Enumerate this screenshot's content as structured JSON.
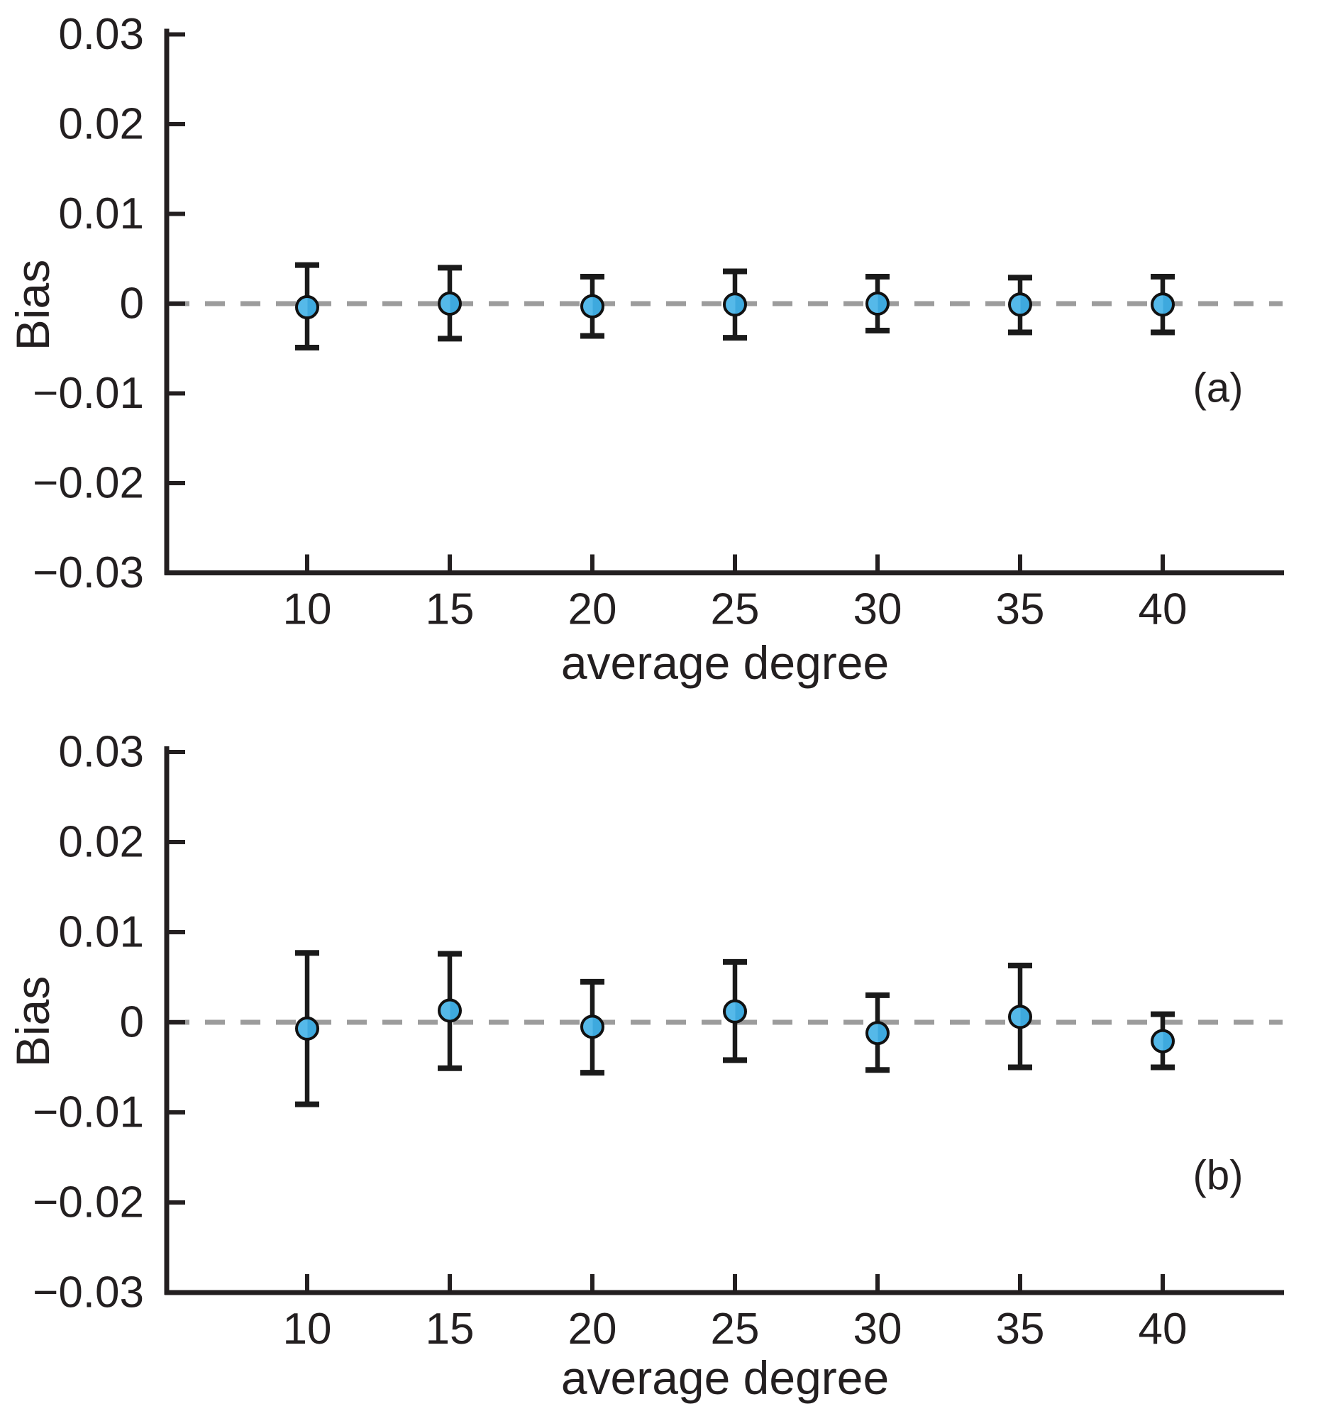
{
  "figure": {
    "background": "#ffffff",
    "panels": [
      {
        "panel_label": "(a)",
        "ylabel": "Bias",
        "xlabel": "average degree"
      },
      {
        "panel_label": "(b)",
        "ylabel": "Bias",
        "xlabel": "average degree"
      }
    ]
  },
  "colors": {
    "background": "#ffffff",
    "axis": "#231f20",
    "text": "#231f20",
    "dashed_line": "#9c9c9c",
    "errorbar": "#1a1a1a",
    "marker_stroke": "#111111",
    "marker_fill_left": "#55b9e9",
    "marker_fill_right": "#3ea9de"
  },
  "chart_data": [
    {
      "type": "scatter",
      "panel": "(a)",
      "title": "",
      "xlabel": "average degree",
      "ylabel": "Bias",
      "x": [
        10,
        15,
        20,
        25,
        30,
        35,
        40
      ],
      "y": [
        -0.0004,
        0.0,
        -0.0003,
        -0.0001,
        0.0,
        -0.0001,
        -0.0001
      ],
      "err_up": [
        0.0047,
        0.004,
        0.0033,
        0.0037,
        0.003,
        0.003,
        0.0031
      ],
      "err_down": [
        0.0045,
        0.0039,
        0.0033,
        0.0037,
        0.003,
        0.0031,
        0.0031
      ],
      "ylim": [
        -0.03,
        0.03
      ],
      "yticks": [
        0.03,
        0.02,
        0.01,
        0,
        -0.01,
        -0.02,
        -0.03
      ],
      "ytick_labels": [
        "0.03",
        "0.02",
        "0.01",
        "0",
        "−0.01",
        "−0.02",
        "−0.03"
      ],
      "xtick_labels": [
        "10",
        "15",
        "20",
        "25",
        "30",
        "35",
        "40"
      ],
      "reference_line_y": 0,
      "grid": false,
      "legend": "none",
      "marker": "circle-with-error-bars"
    },
    {
      "type": "scatter",
      "panel": "(b)",
      "title": "",
      "xlabel": "average degree",
      "ylabel": "Bias",
      "x": [
        10,
        15,
        20,
        25,
        30,
        35,
        40
      ],
      "y": [
        -0.0007,
        0.0013,
        -0.0005,
        0.0012,
        -0.0012,
        0.0006,
        -0.0021
      ],
      "err_up": [
        0.0084,
        0.0063,
        0.005,
        0.0055,
        0.0042,
        0.0057,
        0.003
      ],
      "err_down": [
        0.0084,
        0.0064,
        0.0051,
        0.0054,
        0.0041,
        0.0056,
        0.0029
      ],
      "ylim": [
        -0.03,
        0.03
      ],
      "yticks": [
        0.03,
        0.02,
        0.01,
        0,
        -0.01,
        -0.02,
        -0.03
      ],
      "ytick_labels": [
        "0.03",
        "0.02",
        "0.01",
        "0",
        "−0.01",
        "−0.02",
        "−0.03"
      ],
      "xtick_labels": [
        "10",
        "15",
        "20",
        "25",
        "30",
        "35",
        "40"
      ],
      "reference_line_y": 0,
      "grid": false,
      "legend": "none",
      "marker": "circle-with-error-bars"
    }
  ]
}
